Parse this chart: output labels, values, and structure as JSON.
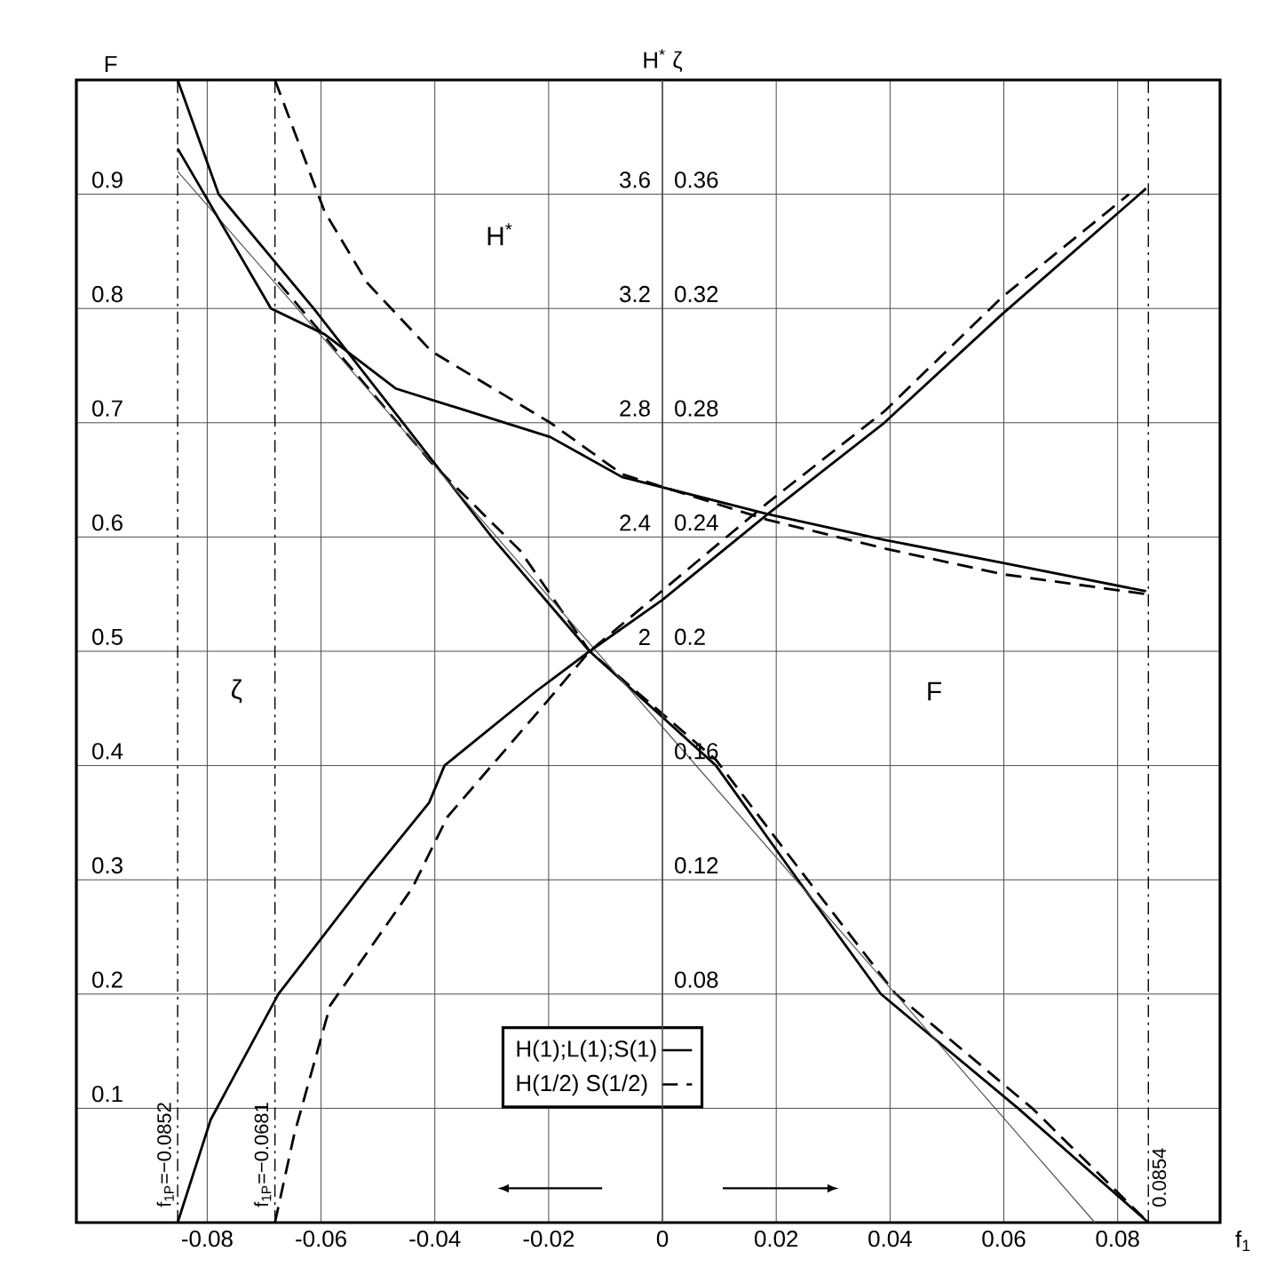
{
  "chart_data": {
    "type": "line",
    "xlabel": "f$_{1}$",
    "ylabel": "F",
    "y2label": "H$^{*}$ ζ",
    "xlim": [
      -0.103,
      0.098
    ],
    "ylim": [
      0,
      1.0
    ],
    "xticks": [
      -0.08,
      -0.06,
      -0.04,
      -0.02,
      0,
      0.02,
      0.04,
      0.06,
      0.08
    ],
    "yticks": [
      0.1,
      0.2,
      0.3,
      0.4,
      0.5,
      0.6,
      0.7,
      0.8,
      0.9
    ],
    "y2lim": [
      0,
      4
    ],
    "y2ticks": [
      2,
      2.4,
      2.8,
      3.2,
      3.6
    ],
    "y3lim": [
      0,
      0.4
    ],
    "y3ticks": [
      0.08,
      0.12,
      0.16,
      0.2,
      0.24,
      0.28,
      0.32,
      0.36
    ],
    "grid": true,
    "legend": "bottom",
    "series": [
      {
        "name": "H(1);L(1);S(1)",
        "color": "#000000",
        "line_style": "solid",
        "x": [
          -0.0852,
          -0.078,
          -0.0613,
          -0.0456,
          -0.03,
          -0.0128,
          0.0094,
          0.0238,
          0.0384,
          0.0625,
          0.0854
        ],
        "values": [
          1.0,
          0.9,
          0.8,
          0.7,
          0.6,
          0.5,
          0.4,
          0.3,
          0.2,
          0.1,
          0
        ]
      },
      {
        "name": "H(1/2) S(1/2)",
        "color": "#000000",
        "line_style": "dashed",
        "x": [
          -0.0675,
          -0.0406,
          -0.025,
          -0.0128,
          0.0094,
          0.0255,
          0.041,
          0.065,
          0.0854
        ],
        "values": [
          0.823,
          0.665,
          0.588,
          0.5,
          0.405,
          0.3,
          0.2,
          0.1,
          0
        ]
      },
      {
        "color": "#555555",
        "line_style": "solid",
        "x": [
          -0.0852,
          0.076
        ],
        "values": [
          0.92,
          0
        ]
      },
      {
        "color": "#000000",
        "line_style": "solid",
        "axis": "y2",
        "x": [
          -0.0852,
          -0.0688,
          -0.0594,
          -0.0469,
          -0.0197,
          -0.0071,
          0.0185,
          0.039,
          0.0597,
          0.085
        ],
        "values": [
          3.76,
          3.2,
          3.11,
          2.92,
          2.75,
          2.61,
          2.48,
          2.39,
          2.31,
          2.21
        ]
      },
      {
        "color": "#000000",
        "line_style": "dashed",
        "axis": "y2",
        "x": [
          -0.0681,
          -0.0594,
          -0.0519,
          -0.0406,
          -0.0197,
          -0.0071,
          0.0185,
          0.039,
          0.0597,
          0.085
        ],
        "values": [
          4.0,
          3.54,
          3.29,
          3.05,
          2.8,
          2.62,
          2.46,
          2.36,
          2.27,
          2.2
        ]
      },
      {
        "color": "#000000",
        "line_style": "solid",
        "axis": "y3",
        "x": [
          -0.0852,
          -0.0794,
          -0.0675,
          -0.052,
          -0.041,
          -0.0383,
          -0.0222,
          -0.0128,
          0,
          0.0185,
          0.039,
          0.0597,
          0.085
        ],
        "values": [
          0,
          0.036,
          0.08,
          0.12,
          0.147,
          0.16,
          0.186,
          0.2,
          0.218,
          0.248,
          0.28,
          0.318,
          0.362
        ]
      },
      {
        "color": "#000000",
        "line_style": "dashed",
        "axis": "y3",
        "x": [
          -0.0681,
          -0.0647,
          -0.0584,
          -0.044,
          -0.0378,
          -0.0209,
          -0.0128,
          0.0185,
          0.039,
          0.0597,
          0.082
        ],
        "values": [
          0,
          0.031,
          0.076,
          0.117,
          0.142,
          0.181,
          0.2,
          0.252,
          0.284,
          0.324,
          0.36
        ]
      }
    ],
    "ref_lines": [
      {
        "axis": "x",
        "value": -0.0852,
        "label": "f$_{1P}$=−0.0852",
        "color": "#000000",
        "line_style": "dashed"
      },
      {
        "axis": "x",
        "value": -0.0681,
        "label": "f$_{1P}$=−0.0681",
        "color": "#000000",
        "line_style": "dashed"
      },
      {
        "axis": "x",
        "value": 0.0854,
        "label": "0.0854",
        "color": "#000000",
        "line_style": "dashed"
      }
    ],
    "annotations": [
      "H$^{*}$",
      "ζ",
      "F"
    ]
  }
}
